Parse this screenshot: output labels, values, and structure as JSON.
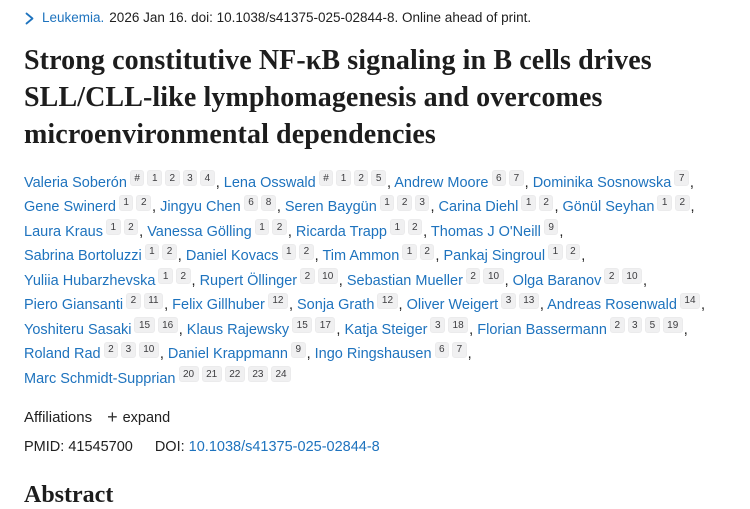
{
  "journal_bar": {
    "journal": "Leukemia.",
    "citation": "2026 Jan 16. doi: 10.1038/s41375-025-02844-8. Online ahead of print."
  },
  "title": "Strong constitutive NF-κB signaling in B cells drives SLL/CLL-like lymphomagenesis and overcomes microenvironmental dependencies",
  "authors": [
    {
      "name": "Valeria Soberón",
      "sups": [
        "#",
        "1",
        "2",
        "3",
        "4"
      ]
    },
    {
      "name": "Lena Osswald",
      "sups": [
        "#",
        "1",
        "2",
        "5"
      ]
    },
    {
      "name": "Andrew Moore",
      "sups": [
        "6",
        "7"
      ]
    },
    {
      "name": "Dominika Sosnowska",
      "sups": [
        "7"
      ]
    },
    {
      "name": "Gene Swinerd",
      "sups": [
        "1",
        "2"
      ]
    },
    {
      "name": "Jingyu Chen",
      "sups": [
        "6",
        "8"
      ]
    },
    {
      "name": "Seren Baygün",
      "sups": [
        "1",
        "2",
        "3"
      ]
    },
    {
      "name": "Carina Diehl",
      "sups": [
        "1",
        "2"
      ]
    },
    {
      "name": "Gönül Seyhan",
      "sups": [
        "1",
        "2"
      ]
    },
    {
      "name": "Laura Kraus",
      "sups": [
        "1",
        "2"
      ]
    },
    {
      "name": "Vanessa Gölling",
      "sups": [
        "1",
        "2"
      ]
    },
    {
      "name": "Ricarda Trapp",
      "sups": [
        "1",
        "2"
      ]
    },
    {
      "name": "Thomas J O'Neill",
      "sups": [
        "9"
      ]
    },
    {
      "name": "Sabrina Bortoluzzi",
      "sups": [
        "1",
        "2"
      ]
    },
    {
      "name": "Daniel Kovacs",
      "sups": [
        "1",
        "2"
      ]
    },
    {
      "name": "Tim Ammon",
      "sups": [
        "1",
        "2"
      ]
    },
    {
      "name": "Pankaj Singroul",
      "sups": [
        "1",
        "2"
      ]
    },
    {
      "name": "Yuliia Hubarzhevska",
      "sups": [
        "1",
        "2"
      ]
    },
    {
      "name": "Rupert Öllinger",
      "sups": [
        "2",
        "10"
      ]
    },
    {
      "name": "Sebastian Mueller",
      "sups": [
        "2",
        "10"
      ]
    },
    {
      "name": "Olga Baranov",
      "sups": [
        "2",
        "10"
      ]
    },
    {
      "name": "Piero Giansanti",
      "sups": [
        "2",
        "11"
      ]
    },
    {
      "name": "Felix Gillhuber",
      "sups": [
        "12"
      ]
    },
    {
      "name": "Sonja Grath",
      "sups": [
        "12"
      ]
    },
    {
      "name": "Oliver Weigert",
      "sups": [
        "3",
        "13"
      ]
    },
    {
      "name": "Andreas Rosenwald",
      "sups": [
        "14"
      ]
    },
    {
      "name": "Yoshiteru Sasaki",
      "sups": [
        "15",
        "16"
      ]
    },
    {
      "name": "Klaus Rajewsky",
      "sups": [
        "15",
        "17"
      ]
    },
    {
      "name": "Katja Steiger",
      "sups": [
        "3",
        "18"
      ]
    },
    {
      "name": "Florian Bassermann",
      "sups": [
        "2",
        "3",
        "5",
        "19"
      ]
    },
    {
      "name": "Roland Rad",
      "sups": [
        "2",
        "3",
        "10"
      ]
    },
    {
      "name": "Daniel Krappmann",
      "sups": [
        "9"
      ]
    },
    {
      "name": "Ingo Ringshausen",
      "sups": [
        "6",
        "7"
      ]
    },
    {
      "name": "Marc Schmidt-Supprian",
      "sups": [
        "20",
        "21",
        "22",
        "23",
        "24"
      ]
    }
  ],
  "affiliations": {
    "label": "Affiliations",
    "expand_label": "expand",
    "plus_glyph": "+"
  },
  "ids": {
    "pmid_label": "PMID:",
    "pmid_value": "41545700",
    "doi_label": "DOI:",
    "doi_value": "10.1038/s41375-025-02844-8"
  },
  "abstract": {
    "heading": "Abstract"
  },
  "colors": {
    "link_blue": "#1e73be",
    "text_dark": "#212121",
    "badge_bg": "#f0f0f1"
  }
}
